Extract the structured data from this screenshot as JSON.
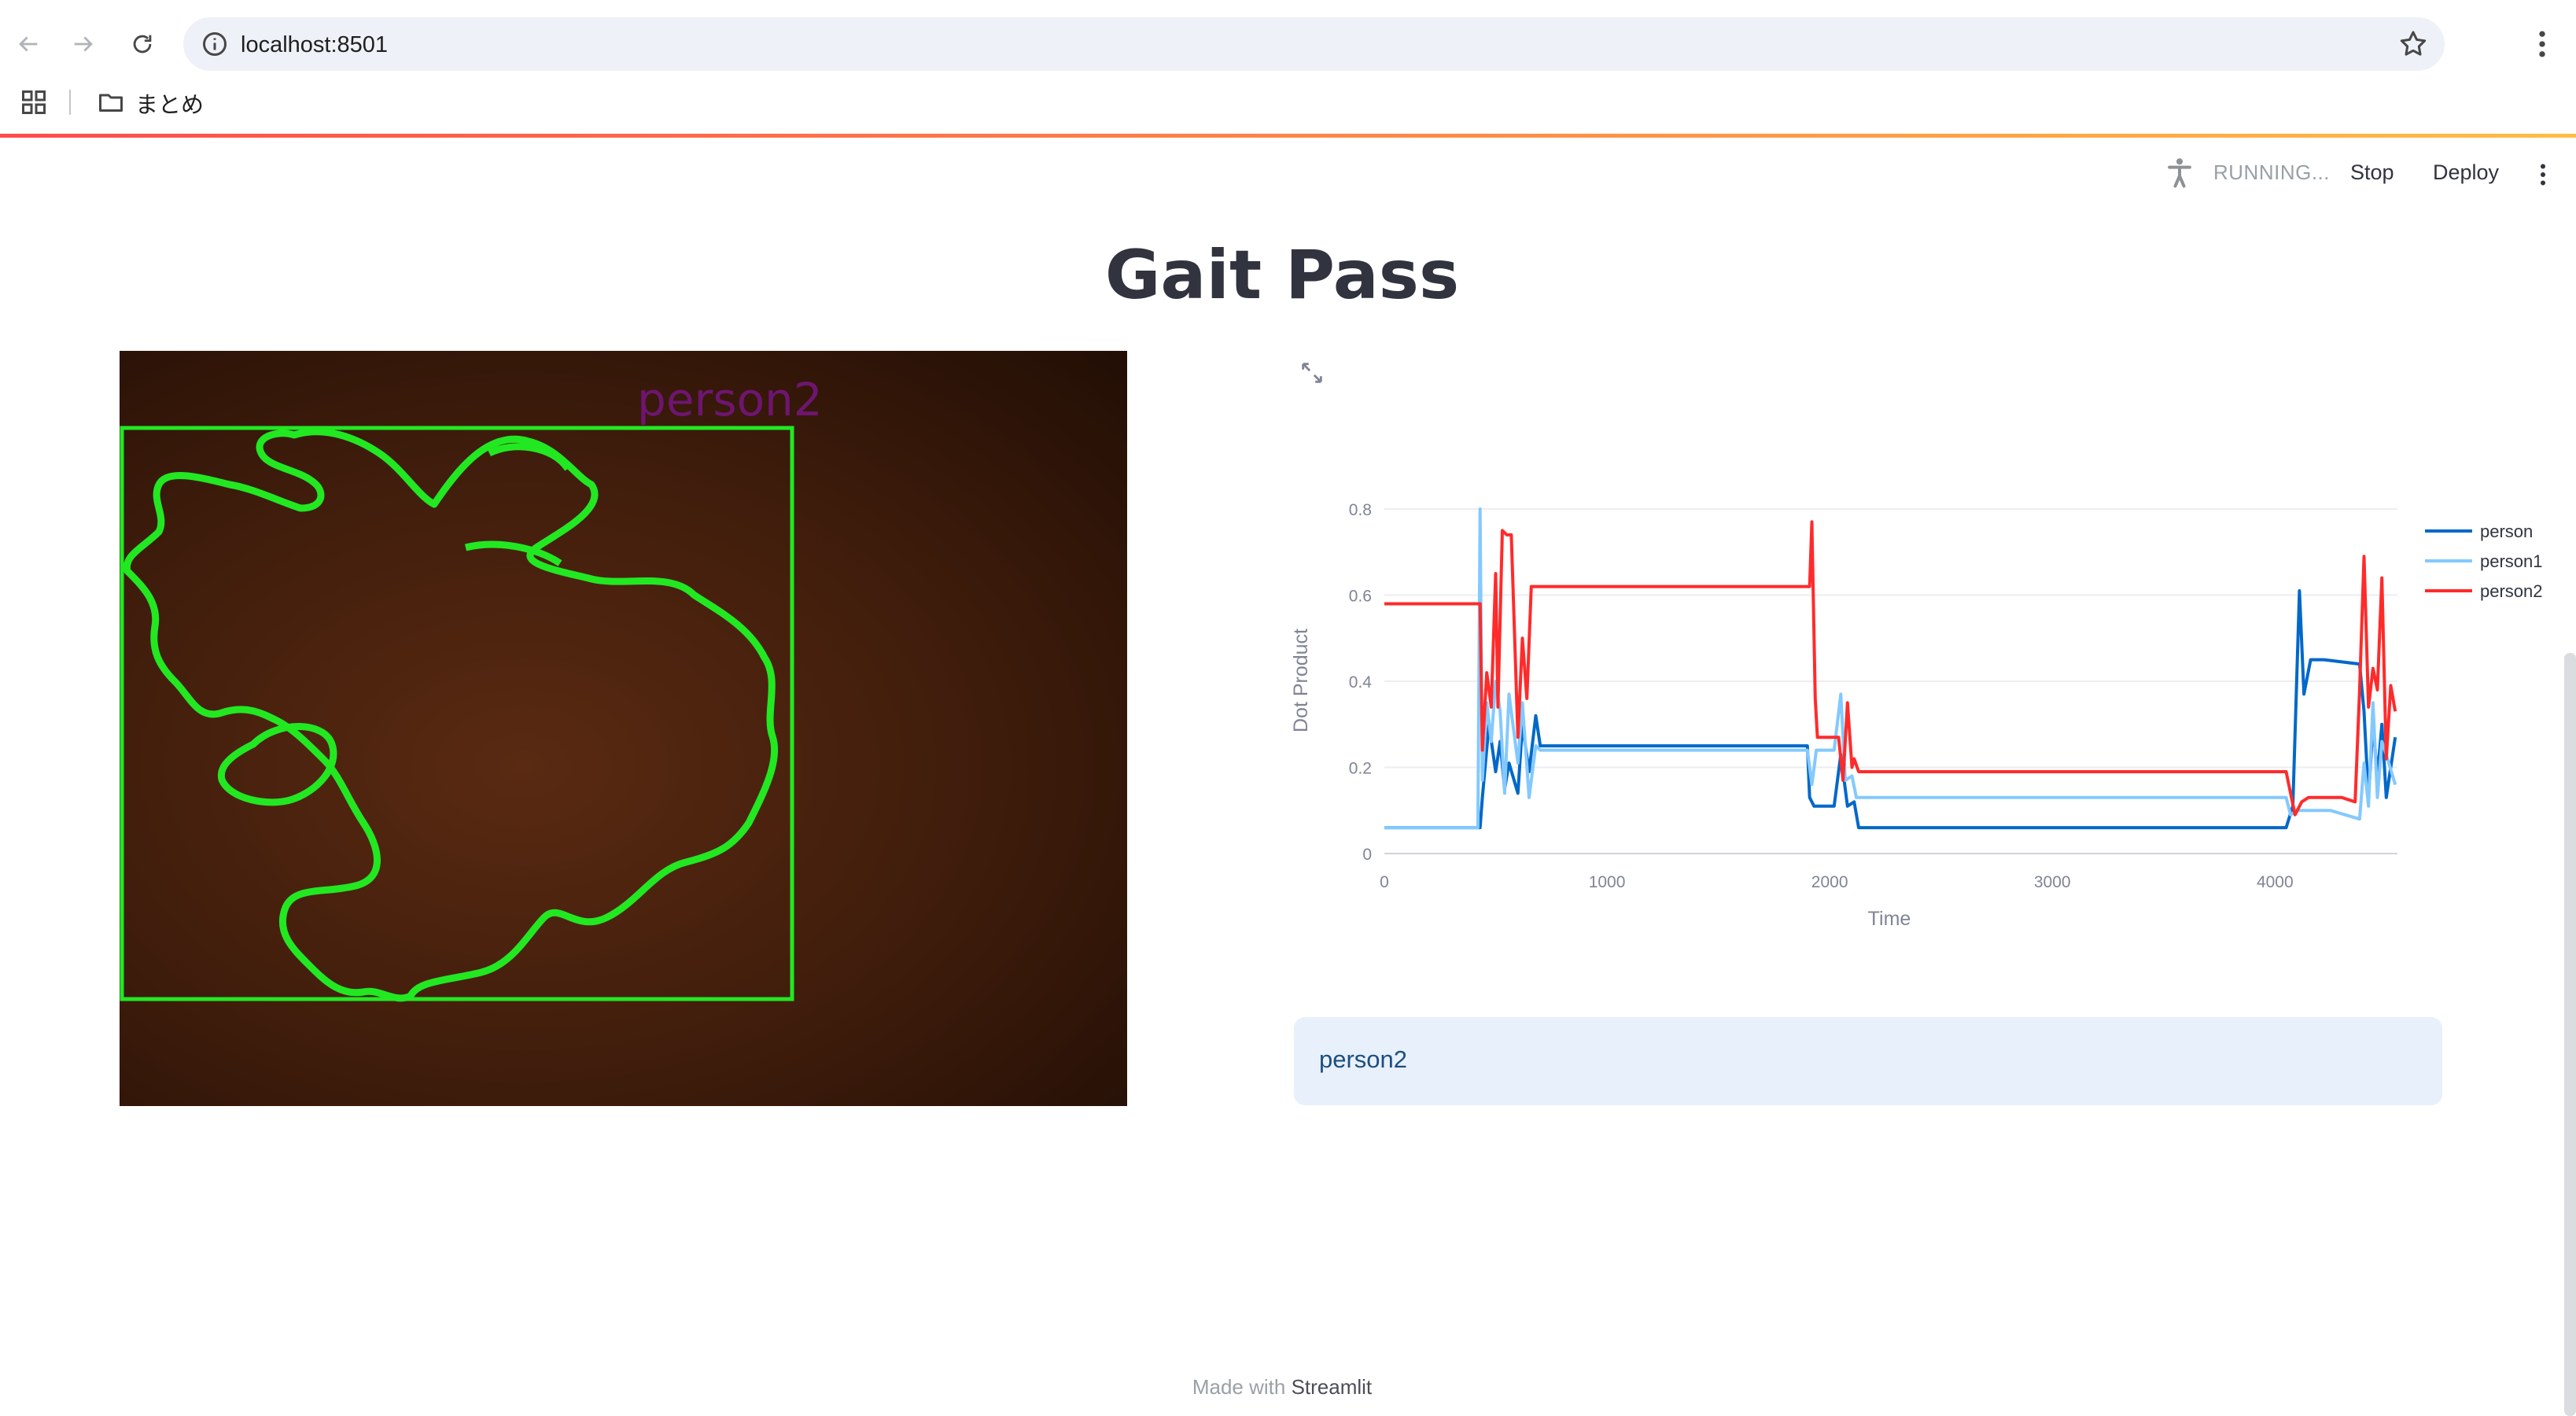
{
  "browser": {
    "url": "localhost:8501",
    "bookmark_folder": "まとめ"
  },
  "toolbar": {
    "status": "RUNNING...",
    "stop_label": "Stop",
    "deploy_label": "Deploy"
  },
  "page": {
    "title": "Gait Pass"
  },
  "video": {
    "overlay_label": "person2"
  },
  "info": {
    "text": "person2"
  },
  "footer": {
    "prefix": "Made with",
    "brand": "Streamlit"
  },
  "chart_data": {
    "type": "line",
    "xlabel": "Time",
    "ylabel": "Dot Product",
    "xlim": [
      0,
      4550
    ],
    "ylim": [
      0,
      0.8
    ],
    "xticks": [
      0,
      1000,
      2000,
      3000,
      4000
    ],
    "yticks": [
      0,
      0.2,
      0.4,
      0.6,
      0.8
    ],
    "grid": true,
    "legend": "right",
    "series": [
      {
        "name": "person",
        "color": "#0068c9",
        "x": [
          0,
          430,
          440,
          470,
          500,
          520,
          540,
          560,
          600,
          620,
          650,
          680,
          700,
          1900,
          1910,
          1930,
          2020,
          2050,
          2080,
          2110,
          2130,
          4050,
          4080,
          4110,
          4130,
          4160,
          4220,
          4380,
          4400,
          4420,
          4440,
          4460,
          4480,
          4500,
          4540
        ],
        "y": [
          0.06,
          0.06,
          0.13,
          0.3,
          0.19,
          0.26,
          0.15,
          0.21,
          0.14,
          0.3,
          0.19,
          0.32,
          0.25,
          0.25,
          0.13,
          0.11,
          0.11,
          0.23,
          0.11,
          0.12,
          0.06,
          0.06,
          0.11,
          0.61,
          0.37,
          0.45,
          0.45,
          0.44,
          0.33,
          0.13,
          0.3,
          0.18,
          0.3,
          0.13,
          0.27
        ]
      },
      {
        "name": "person1",
        "color": "#83c9ff",
        "x": [
          0,
          420,
          430,
          440,
          460,
          480,
          500,
          520,
          540,
          560,
          600,
          620,
          650,
          680,
          700,
          1900,
          1920,
          1940,
          2020,
          2050,
          2070,
          2100,
          2120,
          4050,
          4070,
          4100,
          4150,
          4250,
          4380,
          4400,
          4420,
          4440,
          4460,
          4480,
          4500,
          4540
        ],
        "y": [
          0.06,
          0.06,
          0.8,
          0.17,
          0.35,
          0.26,
          0.4,
          0.33,
          0.14,
          0.37,
          0.21,
          0.35,
          0.13,
          0.25,
          0.24,
          0.24,
          0.16,
          0.24,
          0.24,
          0.37,
          0.17,
          0.18,
          0.13,
          0.13,
          0.09,
          0.1,
          0.1,
          0.1,
          0.08,
          0.21,
          0.11,
          0.35,
          0.13,
          0.26,
          0.23,
          0.16
        ]
      },
      {
        "name": "person2",
        "color": "#ff2b2b",
        "x": [
          0,
          430,
          440,
          460,
          480,
          500,
          510,
          530,
          550,
          570,
          600,
          620,
          640,
          660,
          680,
          700,
          1910,
          1920,
          1935,
          1945,
          2040,
          2060,
          2080,
          2100,
          2110,
          2130,
          4050,
          4070,
          4090,
          4120,
          4150,
          4300,
          4360,
          4380,
          4400,
          4420,
          4440,
          4460,
          4480,
          4500,
          4520,
          4540
        ],
        "y": [
          0.58,
          0.58,
          0.24,
          0.42,
          0.34,
          0.65,
          0.34,
          0.75,
          0.74,
          0.74,
          0.27,
          0.5,
          0.36,
          0.62,
          0.62,
          0.62,
          0.62,
          0.77,
          0.36,
          0.27,
          0.27,
          0.17,
          0.35,
          0.2,
          0.22,
          0.19,
          0.19,
          0.14,
          0.09,
          0.12,
          0.13,
          0.13,
          0.12,
          0.38,
          0.69,
          0.34,
          0.43,
          0.38,
          0.64,
          0.22,
          0.39,
          0.33
        ]
      }
    ]
  }
}
